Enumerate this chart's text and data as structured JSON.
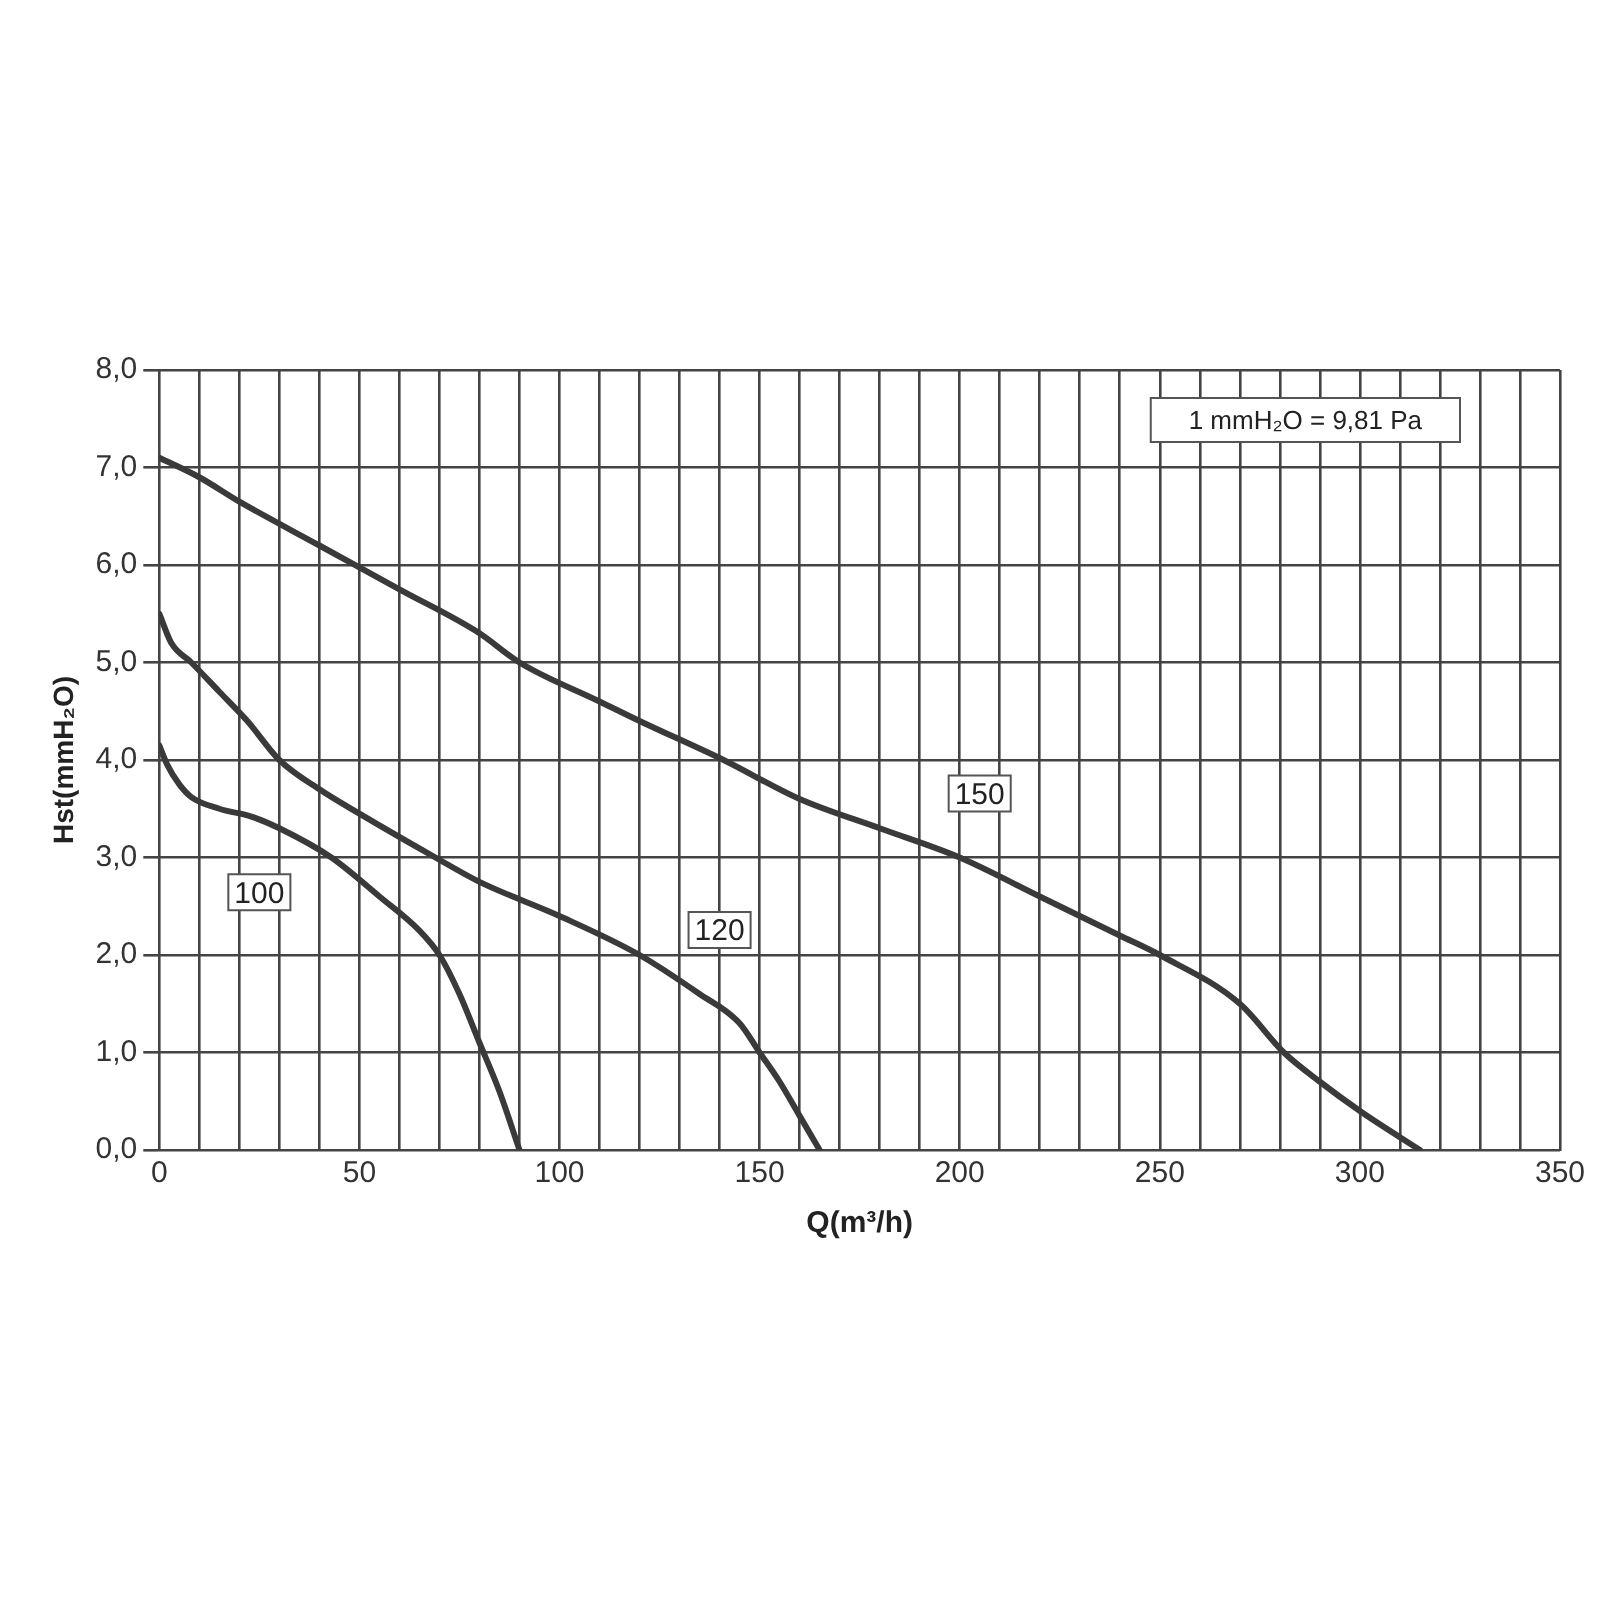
{
  "chart_data": {
    "type": "line",
    "xlabel": "Q(m³/h)",
    "ylabel": "Hst(mmH₂O)",
    "xlim": [
      0,
      350
    ],
    "ylim": [
      0,
      8
    ],
    "xticks": [
      0,
      {
        "value": 10,
        "label": null
      },
      {
        "value": 20,
        "label": null
      },
      {
        "value": 30,
        "label": null
      },
      {
        "value": 40,
        "label": null
      },
      50,
      {
        "value": 60,
        "label": null
      },
      {
        "value": 70,
        "label": null
      },
      {
        "value": 80,
        "label": null
      },
      {
        "value": 90,
        "label": null
      },
      100,
      {
        "value": 110,
        "label": null
      },
      {
        "value": 120,
        "label": null
      },
      {
        "value": 130,
        "label": null
      },
      {
        "value": 140,
        "label": null
      },
      150,
      {
        "value": 160,
        "label": null
      },
      {
        "value": 170,
        "label": null
      },
      {
        "value": 180,
        "label": null
      },
      {
        "value": 190,
        "label": null
      },
      200,
      {
        "value": 210,
        "label": null
      },
      {
        "value": 220,
        "label": null
      },
      {
        "value": 230,
        "label": null
      },
      {
        "value": 240,
        "label": null
      },
      250,
      {
        "value": 260,
        "label": null
      },
      {
        "value": 270,
        "label": null
      },
      {
        "value": 280,
        "label": null
      },
      {
        "value": 290,
        "label": null
      },
      300,
      {
        "value": 310,
        "label": null
      },
      {
        "value": 320,
        "label": null
      },
      {
        "value": 330,
        "label": null
      },
      {
        "value": 340,
        "label": null
      },
      350
    ],
    "yticks": [
      {
        "value": 0,
        "label": "0,0"
      },
      {
        "value": 1,
        "label": "1,0"
      },
      {
        "value": 2,
        "label": "2,0"
      },
      {
        "value": 3,
        "label": "3,0"
      },
      {
        "value": 4,
        "label": "4,0"
      },
      {
        "value": 5,
        "label": "5,0"
      },
      {
        "value": 6,
        "label": "6,0"
      },
      {
        "value": 7,
        "label": "7,0"
      },
      {
        "value": 8,
        "label": "8,0"
      }
    ],
    "grid": true,
    "marker": "none",
    "line_style": "solid",
    "annotations": [
      "1 mmH₂O = 9,81 Pa"
    ],
    "series": [
      {
        "name": "100",
        "color": "#3a3a3a",
        "x": [
          0,
          2,
          5,
          8,
          15,
          23,
          30,
          43,
          55,
          65,
          70,
          75,
          80,
          85,
          90
        ],
        "values": [
          4.15,
          3.95,
          3.75,
          3.62,
          3.5,
          3.42,
          3.3,
          3.0,
          2.6,
          2.25,
          2.0,
          1.6,
          1.1,
          0.6,
          0
        ]
      },
      {
        "name": "120",
        "color": "#3a3a3a",
        "x": [
          0,
          3,
          8,
          15,
          22,
          30,
          40,
          50,
          69,
          80,
          100,
          120,
          135,
          145,
          150,
          155,
          160,
          165
        ],
        "values": [
          5.5,
          5.2,
          5.0,
          4.7,
          4.4,
          4.0,
          3.7,
          3.45,
          3.0,
          2.75,
          2.4,
          2.0,
          1.6,
          1.3,
          1.0,
          0.7,
          0.35,
          0
        ]
      },
      {
        "name": "150",
        "color": "#3a3a3a",
        "x": [
          0,
          10,
          20,
          40,
          60,
          80,
          90,
          110,
          120,
          141,
          160,
          180,
          200,
          220,
          240,
          250,
          270,
          281,
          290,
          300,
          315
        ],
        "values": [
          7.1,
          6.9,
          6.65,
          6.2,
          5.75,
          5.3,
          5.0,
          4.6,
          4.4,
          4.0,
          3.6,
          3.3,
          3.0,
          2.6,
          2.2,
          2.0,
          1.5,
          1.0,
          0.7,
          0.4,
          0
        ]
      }
    ]
  }
}
